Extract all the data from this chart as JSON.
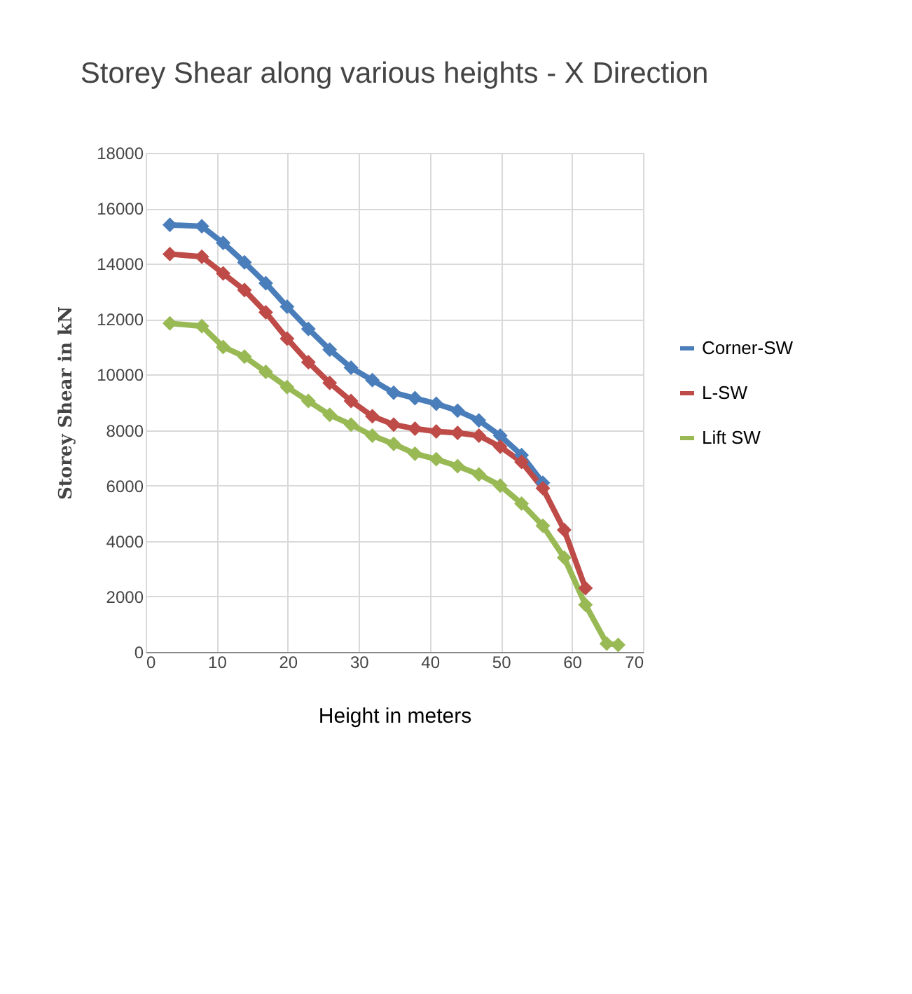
{
  "chart_data": {
    "type": "line",
    "title": "Storey Shear along various heights - X Direction",
    "xlabel": "Height in meters",
    "ylabel": "Storey Shear in kN",
    "x": [
      3.4,
      7.9,
      10.9,
      13.9,
      16.9,
      19.9,
      22.9,
      25.9,
      28.9,
      31.9,
      34.9,
      37.9,
      40.9,
      43.9,
      46.9,
      49.9,
      52.9,
      55.9,
      58.9,
      61.9
    ],
    "series": [
      {
        "name": "Corner-SW",
        "color": "#4a7ebb",
        "values": [
          15400,
          15350,
          14750,
          14050,
          13300,
          12450,
          11650,
          10900,
          10250,
          9800,
          9350,
          9150,
          8950,
          8700,
          8350,
          7800,
          7100,
          6100,
          null,
          null
        ]
      },
      {
        "name": "L-SW",
        "color": "#be4b48",
        "values": [
          14350,
          14250,
          13650,
          13050,
          12250,
          11300,
          10450,
          9700,
          9050,
          8500,
          8200,
          8050,
          7950,
          7900,
          7800,
          7400,
          6850,
          5900,
          4400,
          2300
        ]
      },
      {
        "name": "Lift SW",
        "color": "#98b954",
        "x": [
          3.4,
          7.9,
          10.9,
          13.9,
          16.9,
          19.9,
          22.9,
          25.9,
          28.9,
          31.9,
          34.9,
          37.9,
          40.9,
          43.9,
          46.9,
          49.9,
          52.9,
          55.9,
          58.9,
          61.9,
          64.9,
          66.5
        ],
        "values": [
          11850,
          11750,
          11000,
          10650,
          10100,
          9550,
          9050,
          8550,
          8200,
          7800,
          7500,
          7150,
          6950,
          6700,
          6400,
          6000,
          5350,
          4550,
          3400,
          1700,
          300,
          250
        ]
      }
    ],
    "xlim": [
      0,
      70
    ],
    "xticks": [
      0,
      10,
      20,
      30,
      40,
      50,
      60,
      70
    ],
    "ylim": [
      0,
      18000
    ],
    "yticks": [
      0,
      2000,
      4000,
      6000,
      8000,
      10000,
      12000,
      14000,
      16000,
      18000
    ],
    "grid": true,
    "legend": "right",
    "marker": "diamond",
    "line_style": "solid"
  }
}
